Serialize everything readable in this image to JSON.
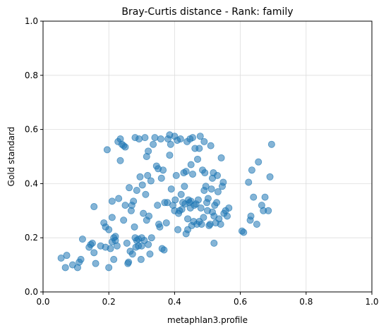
{
  "chart_data": {
    "type": "scatter",
    "title": "Bray-Curtis distance - Rank: family",
    "xlabel": "metaphlan3.profile",
    "ylabel": "Gold standard",
    "xlim": [
      0,
      1
    ],
    "ylim": [
      0,
      1
    ],
    "xticks": [
      "0.0",
      "0.2",
      "0.4",
      "0.6",
      "0.8",
      "1.0"
    ],
    "yticks": [
      "0.0",
      "0.2",
      "0.4",
      "0.6",
      "0.8",
      "1.0"
    ],
    "grid": true,
    "legend": "none",
    "point_color": "#1f77b4",
    "point_alpha": 0.55,
    "series": [
      {
        "points": [
          [
            0.055,
            0.125
          ],
          [
            0.068,
            0.09
          ],
          [
            0.072,
            0.135
          ],
          [
            0.09,
            0.1
          ],
          [
            0.105,
            0.09
          ],
          [
            0.11,
            0.11
          ],
          [
            0.115,
            0.12
          ],
          [
            0.12,
            0.195
          ],
          [
            0.14,
            0.165
          ],
          [
            0.145,
            0.175
          ],
          [
            0.15,
            0.18
          ],
          [
            0.155,
            0.145
          ],
          [
            0.155,
            0.315
          ],
          [
            0.16,
            0.105
          ],
          [
            0.175,
            0.17
          ],
          [
            0.185,
            0.255
          ],
          [
            0.19,
            0.24
          ],
          [
            0.19,
            0.165
          ],
          [
            0.195,
            0.525
          ],
          [
            0.2,
            0.23
          ],
          [
            0.2,
            0.09
          ],
          [
            0.205,
            0.16
          ],
          [
            0.21,
            0.185
          ],
          [
            0.21,
            0.335
          ],
          [
            0.21,
            0.275
          ],
          [
            0.215,
            0.2
          ],
          [
            0.215,
            0.12
          ],
          [
            0.22,
            0.205
          ],
          [
            0.22,
            0.19
          ],
          [
            0.225,
            0.17
          ],
          [
            0.228,
            0.555
          ],
          [
            0.23,
            0.345
          ],
          [
            0.235,
            0.565
          ],
          [
            0.235,
            0.485
          ],
          [
            0.24,
            0.545
          ],
          [
            0.245,
            0.265
          ],
          [
            0.245,
            0.54
          ],
          [
            0.25,
            0.535
          ],
          [
            0.25,
            0.32
          ],
          [
            0.255,
            0.18
          ],
          [
            0.258,
            0.105
          ],
          [
            0.26,
            0.11
          ],
          [
            0.262,
            0.385
          ],
          [
            0.265,
            0.15
          ],
          [
            0.268,
            0.3
          ],
          [
            0.27,
            0.32
          ],
          [
            0.272,
            0.14
          ],
          [
            0.275,
            0.335
          ],
          [
            0.278,
            0.24
          ],
          [
            0.28,
            0.57
          ],
          [
            0.28,
            0.2
          ],
          [
            0.282,
            0.165
          ],
          [
            0.285,
            0.19
          ],
          [
            0.285,
            0.375
          ],
          [
            0.29,
            0.17
          ],
          [
            0.29,
            0.195
          ],
          [
            0.292,
            0.565
          ],
          [
            0.295,
            0.425
          ],
          [
            0.298,
            0.12
          ],
          [
            0.3,
            0.17
          ],
          [
            0.3,
            0.2
          ],
          [
            0.302,
            0.395
          ],
          [
            0.305,
            0.29
          ],
          [
            0.308,
            0.19
          ],
          [
            0.31,
            0.57
          ],
          [
            0.312,
            0.36
          ],
          [
            0.315,
            0.5
          ],
          [
            0.315,
            0.265
          ],
          [
            0.318,
            0.43
          ],
          [
            0.32,
            0.52
          ],
          [
            0.32,
            0.175
          ],
          [
            0.322,
            0.28
          ],
          [
            0.325,
            0.14
          ],
          [
            0.328,
            0.41
          ],
          [
            0.33,
            0.2
          ],
          [
            0.335,
            0.545
          ],
          [
            0.34,
            0.57
          ],
          [
            0.345,
            0.465
          ],
          [
            0.348,
            0.32
          ],
          [
            0.35,
            0.455
          ],
          [
            0.352,
            0.25
          ],
          [
            0.355,
            0.24
          ],
          [
            0.358,
            0.565
          ],
          [
            0.36,
            0.42
          ],
          [
            0.362,
            0.16
          ],
          [
            0.365,
            0.45
          ],
          [
            0.368,
            0.155
          ],
          [
            0.37,
            0.33
          ],
          [
            0.375,
            0.255
          ],
          [
            0.378,
            0.33
          ],
          [
            0.38,
            0.565
          ],
          [
            0.385,
            0.505
          ],
          [
            0.385,
            0.58
          ],
          [
            0.388,
            0.545
          ],
          [
            0.39,
            0.38
          ],
          [
            0.395,
            0.32
          ],
          [
            0.4,
            0.575
          ],
          [
            0.4,
            0.3
          ],
          [
            0.402,
            0.34
          ],
          [
            0.405,
            0.43
          ],
          [
            0.408,
            0.56
          ],
          [
            0.41,
            0.23
          ],
          [
            0.412,
            0.29
          ],
          [
            0.415,
            0.3
          ],
          [
            0.418,
            0.565
          ],
          [
            0.42,
            0.36
          ],
          [
            0.422,
            0.305
          ],
          [
            0.425,
            0.33
          ],
          [
            0.428,
            0.44
          ],
          [
            0.43,
            0.39
          ],
          [
            0.432,
            0.325
          ],
          [
            0.435,
            0.445
          ],
          [
            0.435,
            0.215
          ],
          [
            0.438,
            0.555
          ],
          [
            0.44,
            0.23
          ],
          [
            0.44,
            0.27
          ],
          [
            0.442,
            0.34
          ],
          [
            0.445,
            0.33
          ],
          [
            0.447,
            0.565
          ],
          [
            0.448,
            0.31
          ],
          [
            0.45,
            0.335
          ],
          [
            0.45,
            0.47
          ],
          [
            0.452,
            0.245
          ],
          [
            0.455,
            0.435
          ],
          [
            0.455,
            0.57
          ],
          [
            0.458,
            0.26
          ],
          [
            0.46,
            0.32
          ],
          [
            0.462,
            0.53
          ],
          [
            0.465,
            0.325
          ],
          [
            0.468,
            0.25
          ],
          [
            0.47,
            0.49
          ],
          [
            0.472,
            0.34
          ],
          [
            0.475,
            0.53
          ],
          [
            0.475,
            0.26
          ],
          [
            0.478,
            0.575
          ],
          [
            0.48,
            0.31
          ],
          [
            0.482,
            0.25
          ],
          [
            0.485,
            0.45
          ],
          [
            0.488,
            0.275
          ],
          [
            0.49,
            0.555
          ],
          [
            0.49,
            0.375
          ],
          [
            0.492,
            0.44
          ],
          [
            0.495,
            0.39
          ],
          [
            0.498,
            0.33
          ],
          [
            0.5,
            0.3
          ],
          [
            0.502,
            0.345
          ],
          [
            0.505,
            0.245
          ],
          [
            0.508,
            0.25
          ],
          [
            0.51,
            0.54
          ],
          [
            0.512,
            0.38
          ],
          [
            0.515,
            0.295
          ],
          [
            0.515,
            0.42
          ],
          [
            0.518,
            0.44
          ],
          [
            0.52,
            0.28
          ],
          [
            0.52,
            0.18
          ],
          [
            0.522,
            0.32
          ],
          [
            0.525,
            0.255
          ],
          [
            0.528,
            0.33
          ],
          [
            0.53,
            0.43
          ],
          [
            0.532,
            0.37
          ],
          [
            0.535,
            0.27
          ],
          [
            0.54,
            0.25
          ],
          [
            0.542,
            0.495
          ],
          [
            0.545,
            0.39
          ],
          [
            0.548,
            0.405
          ],
          [
            0.55,
            0.29
          ],
          [
            0.555,
            0.3
          ],
          [
            0.56,
            0.28
          ],
          [
            0.565,
            0.31
          ],
          [
            0.605,
            0.225
          ],
          [
            0.61,
            0.22
          ],
          [
            0.625,
            0.405
          ],
          [
            0.63,
            0.265
          ],
          [
            0.632,
            0.28
          ],
          [
            0.635,
            0.45
          ],
          [
            0.64,
            0.35
          ],
          [
            0.65,
            0.25
          ],
          [
            0.655,
            0.48
          ],
          [
            0.665,
            0.32
          ],
          [
            0.67,
            0.3
          ],
          [
            0.675,
            0.35
          ],
          [
            0.685,
            0.3
          ],
          [
            0.69,
            0.425
          ],
          [
            0.695,
            0.545
          ]
        ]
      }
    ]
  }
}
